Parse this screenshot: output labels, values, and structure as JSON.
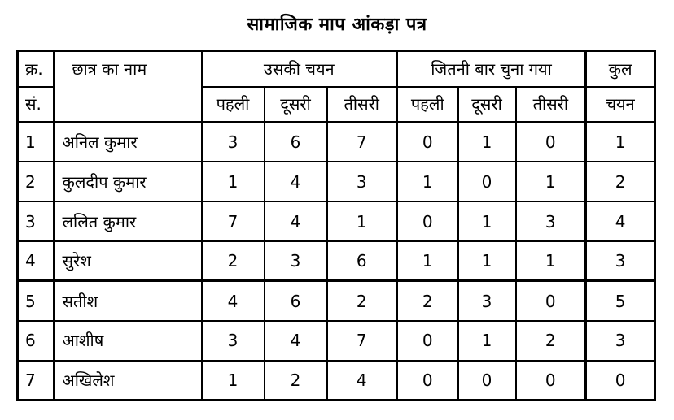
{
  "title": "सामाजिक माप आंकड़ा पत्र",
  "headers": {
    "serial_line1": "क्र.",
    "serial_line2": "सं.",
    "student_name": "छात्र का नाम",
    "his_choice": "उसकी चयन",
    "times_chosen": "जितनी बार चुना गया",
    "total_line1": "कुल",
    "total_line2": "चयन",
    "first": "पहली",
    "second": "दूसरी",
    "third": "तीसरी"
  },
  "rows": [
    {
      "sn": "1",
      "name": "अनिल कुमार",
      "c1": "3",
      "c2": "6",
      "c3": "7",
      "t1": "0",
      "t2": "1",
      "t3": "0",
      "total": "1"
    },
    {
      "sn": "2",
      "name": "कुलदीप कुमार",
      "c1": "1",
      "c2": "4",
      "c3": "3",
      "t1": "1",
      "t2": "0",
      "t3": "1",
      "total": "2"
    },
    {
      "sn": "3",
      "name": "ललित कुमार",
      "c1": "7",
      "c2": "4",
      "c3": "1",
      "t1": "0",
      "t2": "1",
      "t3": "3",
      "total": "4"
    },
    {
      "sn": "4",
      "name": "सुरेश",
      "c1": "2",
      "c2": "3",
      "c3": "6",
      "t1": "1",
      "t2": "1",
      "t3": "1",
      "total": "3"
    },
    {
      "sn": "5",
      "name": "सतीश",
      "c1": "4",
      "c2": "6",
      "c3": "2",
      "t1": "2",
      "t2": "3",
      "t3": "0",
      "total": "5"
    },
    {
      "sn": "6",
      "name": "आशीष",
      "c1": "3",
      "c2": "4",
      "c3": "7",
      "t1": "0",
      "t2": "1",
      "t3": "2",
      "total": "3"
    },
    {
      "sn": "7",
      "name": "अखिलेश",
      "c1": "1",
      "c2": "2",
      "c3": "4",
      "t1": "0",
      "t2": "0",
      "t3": "0",
      "total": "0"
    }
  ]
}
